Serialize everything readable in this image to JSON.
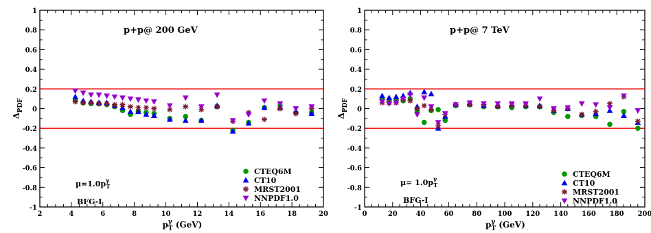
{
  "chart_data": [
    {
      "type": "scatter",
      "title": "p+p@ 200 GeV",
      "xlabel_main": "p",
      "xlabel_sup": "γ",
      "xlabel_sub": "T",
      "xlabel_unit": " (GeV)",
      "ylabel_main": "Δ",
      "ylabel_sub": "PDF",
      "xlim": [
        2,
        20
      ],
      "ylim": [
        -1,
        1
      ],
      "xticks": [
        2,
        4,
        6,
        8,
        10,
        12,
        14,
        16,
        18,
        20
      ],
      "yticks": [
        -1,
        -0.8,
        -0.6,
        -0.4,
        -0.2,
        0,
        0.2,
        0.4,
        0.6,
        0.8,
        1
      ],
      "hlines": [
        0.2,
        -0.2
      ],
      "scale_label": {
        "main": "μ=1.0p",
        "sup": "γ",
        "sub": "T"
      },
      "frag_label": "BFG-I",
      "legend_position": "bottom-right",
      "x": [
        4.25,
        4.75,
        5.25,
        5.75,
        6.25,
        6.75,
        7.25,
        7.75,
        8.25,
        8.75,
        9.25,
        10.25,
        11.25,
        12.25,
        13.25,
        14.25,
        15.25,
        16.25,
        17.25,
        18.25,
        19.25
      ],
      "series": [
        {
          "name": "CTEQ6M",
          "marker": "circle",
          "color": "#009900",
          "values": [
            0.08,
            0.06,
            0.05,
            0.05,
            0.04,
            0.02,
            -0.02,
            -0.06,
            -0.03,
            -0.04,
            -0.05,
            -0.1,
            -0.08,
            -0.12,
            0.02,
            -0.22,
            -0.14,
            0.01,
            0.03,
            -0.04,
            -0.04
          ]
        },
        {
          "name": "CT10",
          "marker": "triangle-up",
          "color": "#0000ee",
          "values": [
            0.12,
            0.08,
            0.07,
            0.06,
            0.06,
            0.03,
            0.01,
            -0.03,
            -0.03,
            -0.06,
            -0.07,
            -0.11,
            -0.12,
            -0.12,
            0.03,
            -0.23,
            -0.15,
            0.01,
            0.01,
            -0.03,
            -0.05
          ]
        },
        {
          "name": "MRST2001",
          "marker": "star",
          "color": "#7a1a30",
          "values": [
            0.07,
            0.06,
            0.06,
            0.05,
            0.05,
            0.04,
            0.04,
            0.02,
            0.01,
            0.01,
            0.0,
            -0.01,
            0.02,
            -0.01,
            0.02,
            -0.13,
            -0.04,
            -0.11,
            0.0,
            -0.05,
            0.0
          ]
        },
        {
          "name": "NNPDF1.0",
          "marker": "triangle-down",
          "color": "#9900cc",
          "values": [
            0.18,
            0.16,
            0.14,
            0.14,
            0.13,
            0.12,
            0.11,
            0.1,
            0.09,
            0.08,
            0.07,
            0.03,
            0.11,
            0.02,
            0.14,
            -0.12,
            -0.06,
            0.08,
            0.05,
            0.0,
            0.02
          ]
        }
      ]
    },
    {
      "type": "scatter",
      "title": "p+p@ 7 TeV",
      "xlabel_main": "p",
      "xlabel_sup": "γ",
      "xlabel_sub": "T",
      "xlabel_unit": " (GeV)",
      "ylabel_main": "Δ",
      "ylabel_sub": "PDF",
      "xlim": [
        0,
        200
      ],
      "ylim": [
        -1,
        1
      ],
      "xticks": [
        0,
        20,
        40,
        60,
        80,
        100,
        120,
        140,
        160,
        180,
        200
      ],
      "yticks": [
        -1,
        -0.8,
        -0.6,
        -0.4,
        -0.2,
        0,
        0.2,
        0.4,
        0.6,
        0.8,
        1
      ],
      "hlines": [
        0.2,
        -0.2
      ],
      "scale_label": {
        "main": "μ= 1.0p",
        "sup": "γ",
        "sub": "T"
      },
      "frag_label": "BFG-I",
      "legend_position": "bottom-right",
      "x": [
        12.5,
        17.5,
        22.5,
        27.5,
        32.5,
        37.5,
        42.5,
        47.5,
        52.5,
        57.5,
        65,
        75,
        85,
        95,
        105,
        115,
        125,
        135,
        145,
        155,
        165,
        175,
        185,
        195
      ],
      "series": [
        {
          "name": "CTEQ6M",
          "marker": "circle",
          "color": "#009900",
          "values": [
            0.1,
            0.09,
            0.09,
            0.08,
            0.1,
            -0.02,
            -0.14,
            -0.02,
            -0.01,
            -0.12,
            0.03,
            0.04,
            0.02,
            0.02,
            0.01,
            0.02,
            0.02,
            -0.04,
            -0.08,
            -0.07,
            -0.08,
            -0.16,
            -0.03,
            -0.2
          ]
        },
        {
          "name": "CT10",
          "marker": "triangle-up",
          "color": "#0000ee",
          "values": [
            0.13,
            0.11,
            0.12,
            0.13,
            0.16,
            0.02,
            0.17,
            0.15,
            -0.2,
            -0.08,
            0.04,
            0.05,
            0.03,
            0.03,
            0.04,
            0.03,
            0.03,
            -0.02,
            0.0,
            -0.06,
            -0.05,
            -0.02,
            -0.07,
            -0.14
          ]
        },
        {
          "name": "MRST2001",
          "marker": "star",
          "color": "#7a1a30",
          "values": [
            0.06,
            0.06,
            0.06,
            0.09,
            0.08,
            0.0,
            0.03,
            -0.01,
            -0.17,
            -0.06,
            0.04,
            0.04,
            0.04,
            0.02,
            0.03,
            0.03,
            0.02,
            -0.02,
            0.0,
            -0.06,
            -0.03,
            0.05,
            0.12,
            -0.13
          ]
        },
        {
          "name": "NNPDF1.0",
          "marker": "triangle-down",
          "color": "#9900cc",
          "values": [
            0.07,
            0.05,
            0.06,
            0.1,
            0.14,
            -0.06,
            0.11,
            0.02,
            -0.14,
            -0.05,
            0.04,
            0.06,
            0.05,
            0.05,
            0.05,
            0.05,
            0.1,
            0.0,
            0.01,
            0.05,
            0.04,
            0.01,
            0.13,
            -0.02
          ]
        }
      ]
    }
  ]
}
